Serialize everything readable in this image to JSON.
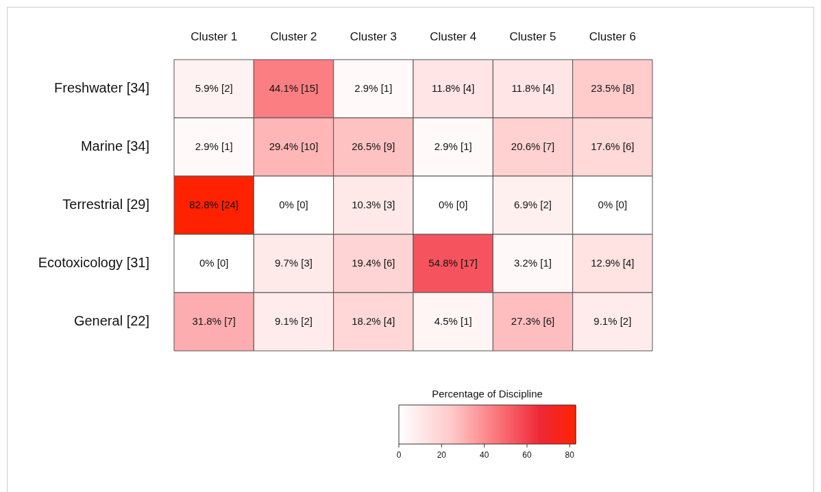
{
  "chart_data": {
    "type": "heatmap",
    "clabel": "Percentage of Discipline",
    "categories": [
      "Cluster 1",
      "Cluster 2",
      "Cluster 3",
      "Cluster 4",
      "Cluster 5",
      "Cluster 6"
    ],
    "y_categories": [
      "Freshwater [34]",
      "Marine [34]",
      "Terrestrial [29]",
      "Ecotoxicology [31]",
      "General [22]"
    ],
    "cells": [
      [
        5.9,
        44.1,
        2.9,
        11.8,
        11.8,
        23.5
      ],
      [
        2.9,
        29.4,
        26.5,
        2.9,
        20.6,
        17.6
      ],
      [
        82.8,
        0,
        10.3,
        0,
        6.9,
        0
      ],
      [
        0,
        9.7,
        19.4,
        54.8,
        3.2,
        12.9
      ],
      [
        31.8,
        9.1,
        18.2,
        4.5,
        27.3,
        9.1
      ]
    ],
    "cell_labels": [
      [
        "5.9% [2]",
        "44.1% [15]",
        "2.9% [1]",
        "11.8% [4]",
        "11.8% [4]",
        "23.5% [8]"
      ],
      [
        "2.9% [1]",
        "29.4% [10]",
        "26.5% [9]",
        "2.9% [1]",
        "20.6% [7]",
        "17.6% [6]"
      ],
      [
        "82.8% [24]",
        "0% [0]",
        "10.3% [3]",
        "0% [0]",
        "6.9% [2]",
        "0% [0]"
      ],
      [
        "0% [0]",
        "9.7% [3]",
        "19.4% [6]",
        "54.8% [17]",
        "3.2% [1]",
        "12.9% [4]"
      ],
      [
        "31.8% [7]",
        "9.1% [2]",
        "18.2% [4]",
        "4.5% [1]",
        "27.3% [6]",
        "9.1% [2]"
      ]
    ],
    "clim": [
      0,
      82.8
    ],
    "cticks": [
      0,
      20,
      40,
      60,
      80
    ]
  }
}
